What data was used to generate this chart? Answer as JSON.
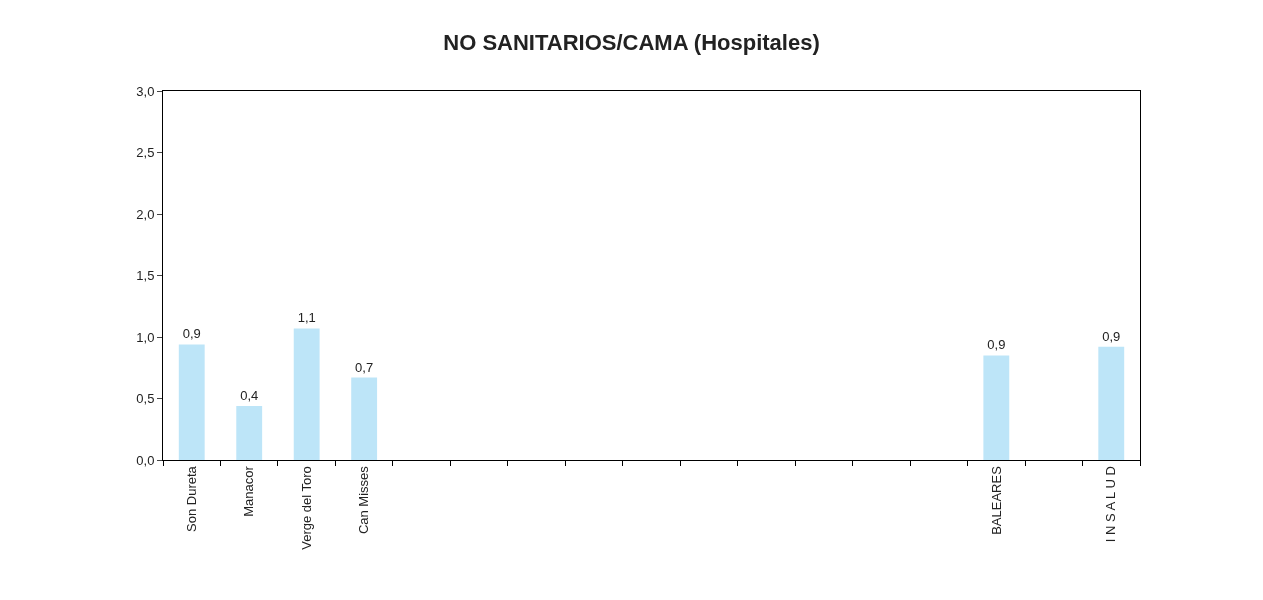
{
  "chart_data": {
    "type": "bar",
    "title": "NO SANITARIOS/CAMA (Hospitales)",
    "categories": [
      "Son Dureta",
      "Manacor",
      "Verge del Toro",
      "Can Misses",
      null,
      null,
      null,
      null,
      null,
      null,
      null,
      null,
      null,
      null,
      "BALEARES",
      null,
      "I N S A L U D"
    ],
    "values": [
      0.94,
      0.44,
      1.07,
      0.67,
      null,
      null,
      null,
      null,
      null,
      null,
      null,
      null,
      null,
      null,
      0.85,
      null,
      0.92
    ],
    "value_labels": [
      "0,9",
      "0,4",
      "1,1",
      "0,7",
      null,
      null,
      null,
      null,
      null,
      null,
      null,
      null,
      null,
      null,
      "0,9",
      null,
      "0,9"
    ],
    "color": "#bde5f8",
    "ylim": [
      0,
      3
    ],
    "yticks": [
      {
        "value": 0,
        "label": "0,0"
      },
      {
        "value": 0.5,
        "label": "0,5"
      },
      {
        "value": 1,
        "label": "1,0"
      },
      {
        "value": 1.5,
        "label": "1,5"
      },
      {
        "value": 2,
        "label": "2,0"
      },
      {
        "value": 2.5,
        "label": "2,5"
      },
      {
        "value": 3,
        "label": "3,0"
      }
    ],
    "tick_labels": "xy"
  }
}
